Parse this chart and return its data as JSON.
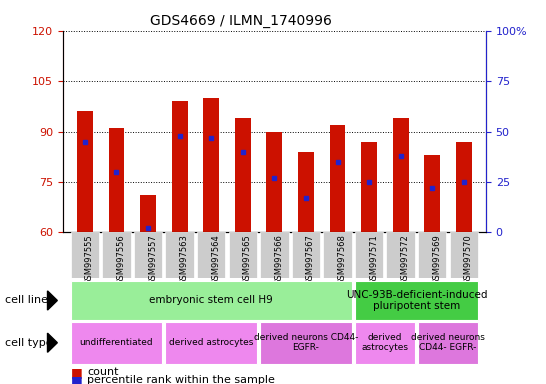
{
  "title": "GDS4669 / ILMN_1740996",
  "samples": [
    "GSM997555",
    "GSM997556",
    "GSM997557",
    "GSM997563",
    "GSM997564",
    "GSM997565",
    "GSM997566",
    "GSM997567",
    "GSM997568",
    "GSM997571",
    "GSM997572",
    "GSM997569",
    "GSM997570"
  ],
  "counts": [
    96,
    91,
    71,
    99,
    100,
    94,
    90,
    84,
    92,
    87,
    94,
    83,
    87
  ],
  "percentiles": [
    45,
    30,
    2,
    48,
    47,
    40,
    27,
    17,
    35,
    25,
    38,
    22,
    25
  ],
  "ylim_left": [
    60,
    120
  ],
  "ylim_right": [
    0,
    100
  ],
  "yticks_left": [
    60,
    75,
    90,
    105,
    120
  ],
  "yticks_right": [
    0,
    25,
    50,
    75,
    100
  ],
  "bar_color": "#cc1100",
  "marker_color": "#2222cc",
  "bar_width": 0.5,
  "cell_line_groups": [
    {
      "label": "embryonic stem cell H9",
      "start": 0,
      "end": 8,
      "color": "#99ee99"
    },
    {
      "label": "UNC-93B-deficient-induced\npluripotent stem",
      "start": 9,
      "end": 12,
      "color": "#44cc44"
    }
  ],
  "cell_type_groups": [
    {
      "label": "undifferentiated",
      "start": 0,
      "end": 2,
      "color": "#ee88ee"
    },
    {
      "label": "derived astrocytes",
      "start": 3,
      "end": 5,
      "color": "#ee88ee"
    },
    {
      "label": "derived neurons CD44-\nEGFR-",
      "start": 6,
      "end": 8,
      "color": "#dd77dd"
    },
    {
      "label": "derived\nastrocytes",
      "start": 9,
      "end": 10,
      "color": "#ee88ee"
    },
    {
      "label": "derived neurons\nCD44- EGFR-",
      "start": 11,
      "end": 12,
      "color": "#dd77dd"
    }
  ],
  "cell_line_label": "cell line",
  "cell_type_label": "cell type",
  "left_axis_color": "#cc1100",
  "right_axis_color": "#2222cc",
  "xtick_bg": "#cccccc"
}
